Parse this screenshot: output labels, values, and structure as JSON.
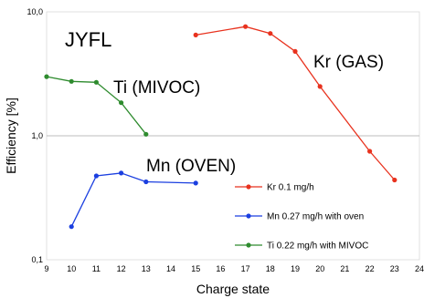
{
  "chart_data": {
    "type": "line",
    "xlabel": "Charge state",
    "ylabel": "Efficiency [%]",
    "xlim": [
      9,
      24
    ],
    "ylim": [
      0.1,
      10
    ],
    "yscale": "log",
    "x_ticks": [
      "9",
      "10",
      "11",
      "12",
      "13",
      "14",
      "15",
      "16",
      "17",
      "18",
      "19",
      "20",
      "21",
      "22",
      "23",
      "24"
    ],
    "y_ticks": [
      "0,1",
      "1,0",
      "10,0"
    ],
    "reference_line_y": 1.0,
    "legend_position": "right",
    "annotations": {
      "facility": "JYFL",
      "kr": "Kr (GAS)",
      "ti": "Ti (MIVOC)",
      "mn": "Mn (OVEN)"
    },
    "series": [
      {
        "name": "Kr 0.1 mg/h",
        "color": "#e8321e",
        "points": [
          [
            15,
            6.5
          ],
          [
            17,
            7.6
          ],
          [
            18,
            6.7
          ],
          [
            19,
            4.8
          ],
          [
            20,
            2.5
          ],
          [
            22,
            0.75
          ],
          [
            23,
            0.44
          ]
        ]
      },
      {
        "name": "Mn 0.27 mg/h with oven",
        "color": "#1b3fe0",
        "points": [
          [
            10,
            0.185
          ],
          [
            11,
            0.475
          ],
          [
            12,
            0.5
          ],
          [
            13,
            0.425
          ],
          [
            15,
            0.415
          ]
        ]
      },
      {
        "name": "Ti 0.22 mg/h with MIVOC",
        "color": "#2e8b2e",
        "points": [
          [
            9,
            3.0
          ],
          [
            10,
            2.75
          ],
          [
            11,
            2.7
          ],
          [
            12,
            1.85
          ],
          [
            13,
            1.03
          ]
        ]
      }
    ]
  }
}
